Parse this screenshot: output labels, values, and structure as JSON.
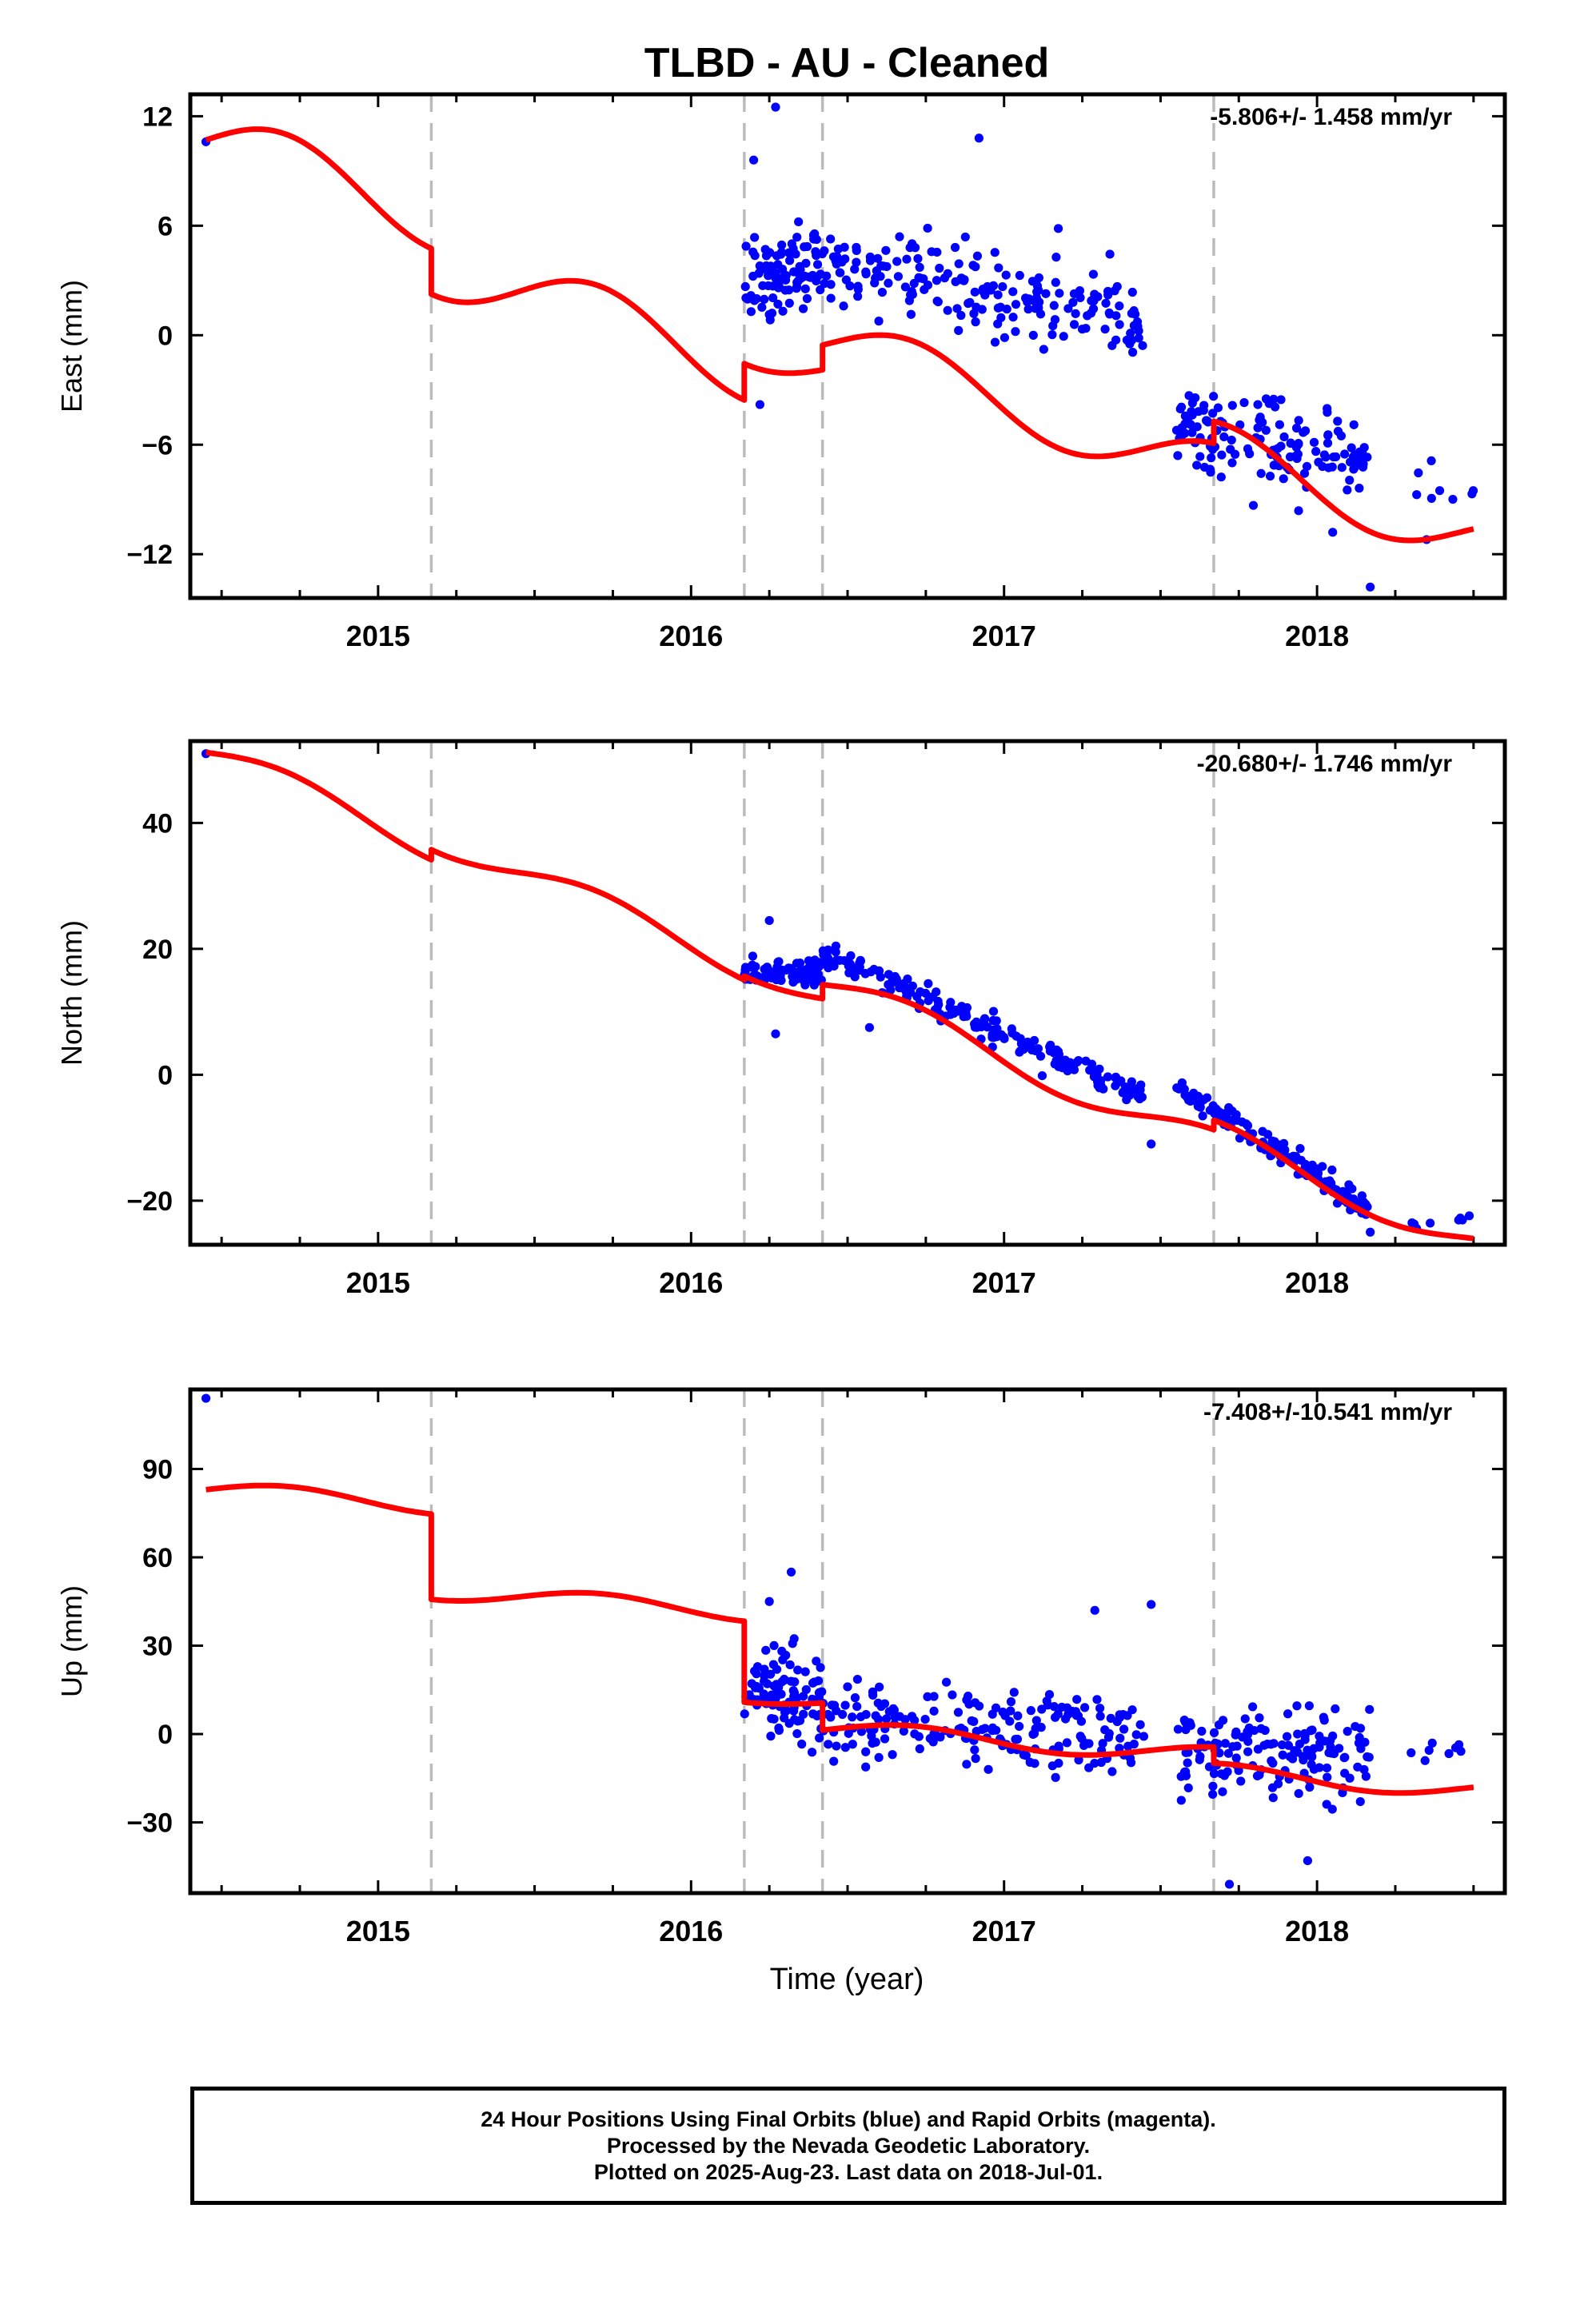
{
  "title": "TLBD  - AU - Cleaned",
  "xlabel": "Time (year)",
  "caption": {
    "line1": "24 Hour Positions Using Final Orbits (blue) and Rapid Orbits (magenta).",
    "line2": "Processed by the Nevada Geodetic Laboratory.",
    "line3": "Plotted on 2025-Aug-23. Last data on 2018-Jul-01."
  },
  "chart_data": [
    {
      "type": "scatter",
      "panel": "east",
      "ylabel": "East (mm)",
      "rate_label": "-5.806+/- 1.458 mm/yr",
      "xlim": [
        2014.4,
        2018.6
      ],
      "ylim": [
        -14.4,
        13.2
      ],
      "yticks": [
        12,
        6,
        0,
        -6,
        -12
      ],
      "ytick_labels": [
        "12",
        "6",
        "0",
        "−6",
        "−12"
      ],
      "xticks": [
        2015,
        2016,
        2017,
        2018
      ],
      "xtick_labels": [
        "2015",
        "2016",
        "2017",
        "2018"
      ],
      "breaks": [
        2015.17,
        2016.17,
        2016.42,
        2017.67
      ],
      "colors": {
        "points": "#0000ff",
        "model": "#ff0000",
        "breaks": "#bbbbbb"
      },
      "clusters": [
        {
          "x": [
            2014.45,
            2014.45
          ],
          "center": [
            10.6,
            10.6
          ],
          "spread": 0,
          "n": 1
        },
        {
          "x": [
            2016.17,
            2016.42
          ],
          "center": [
            3.4,
            3.6
          ],
          "spread": 2.4,
          "n": 95
        },
        {
          "x": [
            2016.42,
            2017.45
          ],
          "center": [
            4.0,
            0.8
          ],
          "spread": 2.0,
          "n": 190
        },
        {
          "x": [
            2017.55,
            2018.17
          ],
          "center": [
            -5.0,
            -6.5
          ],
          "spread": 2.0,
          "n": 150
        },
        {
          "x": [
            2018.3,
            2018.5
          ],
          "center": [
            -8.0,
            -8.5
          ],
          "spread": 1.6,
          "n": 8
        }
      ],
      "outliers": [
        [
          2016.27,
          12.5
        ],
        [
          2016.2,
          9.6
        ],
        [
          2016.92,
          10.8
        ],
        [
          2018.17,
          -13.8
        ],
        [
          2016.22,
          -3.8
        ],
        [
          2018.35,
          -11.2
        ],
        [
          2018.05,
          -10.8
        ]
      ],
      "model": {
        "segments": [
          {
            "x": [
              2014.45,
              2015.17
            ],
            "offset": 10.7,
            "slope": -5.806,
            "amp": 1.8,
            "phase": 0.0
          },
          {
            "x": [
              2015.17,
              2016.17
            ],
            "offset": 8.2,
            "slope": -5.806,
            "amp": 1.8,
            "phase": 0.0
          },
          {
            "x": [
              2016.17,
              2016.42
            ],
            "offset": 9.8,
            "slope": -5.806,
            "amp": 1.4,
            "phase": 0.0
          },
          {
            "x": [
              2016.42,
              2017.67
            ],
            "offset": 11.2,
            "slope": -5.806,
            "amp": 1.6,
            "phase": 0.0
          },
          {
            "x": [
              2017.67,
              2018.5
            ],
            "offset": 12.4,
            "slope": -5.806,
            "amp": 1.6,
            "phase": 0.0
          }
        ]
      }
    },
    {
      "type": "scatter",
      "panel": "north",
      "ylabel": "North (mm)",
      "rate_label": "-20.680+/- 1.746 mm/yr",
      "xlim": [
        2014.4,
        2018.6
      ],
      "ylim": [
        -27,
        53
      ],
      "yticks": [
        40,
        20,
        0,
        -20
      ],
      "ytick_labels": [
        "40",
        "20",
        "0",
        "−20"
      ],
      "xticks": [
        2015,
        2016,
        2017,
        2018
      ],
      "xtick_labels": [
        "2015",
        "2016",
        "2017",
        "2018"
      ],
      "breaks": [
        2015.17,
        2016.17,
        2016.42,
        2017.67
      ],
      "colors": {
        "points": "#0000ff",
        "model": "#ff0000",
        "breaks": "#bbbbbb"
      },
      "clusters": [
        {
          "x": [
            2014.45,
            2014.45
          ],
          "center": [
            51.0,
            51.0
          ],
          "spread": 0,
          "n": 1
        },
        {
          "x": [
            2016.17,
            2016.42
          ],
          "center": [
            15.8,
            16.5
          ],
          "spread": 1.8,
          "n": 95
        },
        {
          "x": [
            2016.42,
            2017.45
          ],
          "center": [
            19.5,
            -3.5
          ],
          "spread": 1.8,
          "n": 190
        },
        {
          "x": [
            2017.55,
            2018.17
          ],
          "center": [
            -2.0,
            -21.5
          ],
          "spread": 1.8,
          "n": 150
        },
        {
          "x": [
            2018.3,
            2018.5
          ],
          "center": [
            -24.0,
            -22.5
          ],
          "spread": 0.8,
          "n": 8
        }
      ],
      "outliers": [
        [
          2016.25,
          24.5
        ],
        [
          2016.27,
          6.5
        ],
        [
          2016.57,
          7.5
        ],
        [
          2017.47,
          -11.0
        ],
        [
          2018.17,
          -25.0
        ]
      ],
      "model": {
        "segments": [
          {
            "x": [
              2014.45,
              2015.17
            ],
            "offset": 51.2,
            "slope": -20.68,
            "amp": 2.2,
            "phase": 0.0
          },
          {
            "x": [
              2015.17,
              2016.17
            ],
            "offset": 52.8,
            "slope": -20.68,
            "amp": 2.2,
            "phase": 0.0
          },
          {
            "x": [
              2016.17,
              2016.42
            ],
            "offset": 53.2,
            "slope": -20.68,
            "amp": 2.0,
            "phase": 0.0
          },
          {
            "x": [
              2016.42,
              2017.67
            ],
            "offset": 55.5,
            "slope": -20.68,
            "amp": 2.4,
            "phase": 0.0
          },
          {
            "x": [
              2017.67,
              2018.5
            ],
            "offset": 57.0,
            "slope": -20.68,
            "amp": 2.4,
            "phase": 0.0
          }
        ]
      }
    },
    {
      "type": "scatter",
      "panel": "up",
      "ylabel": "Up (mm)",
      "rate_label": "-7.408+/-10.541 mm/yr",
      "xlim": [
        2014.4,
        2018.6
      ],
      "ylim": [
        -54,
        117
      ],
      "yticks": [
        90,
        60,
        30,
        0,
        -30
      ],
      "ytick_labels": [
        "90",
        "60",
        "30",
        "0",
        "−30"
      ],
      "xticks": [
        2015,
        2016,
        2017,
        2018
      ],
      "xtick_labels": [
        "2015",
        "2016",
        "2017",
        "2018"
      ],
      "breaks": [
        2015.17,
        2016.17,
        2016.42,
        2017.67
      ],
      "colors": {
        "points": "#0000ff",
        "model": "#ff0000",
        "breaks": "#bbbbbb"
      },
      "clusters": [
        {
          "x": [
            2014.45,
            2014.45
          ],
          "center": [
            114.0,
            114.0
          ],
          "spread": 0,
          "n": 1
        },
        {
          "x": [
            2016.17,
            2016.42
          ],
          "center": [
            14.0,
            14.0
          ],
          "spread": 14.0,
          "n": 95
        },
        {
          "x": [
            2016.42,
            2017.45
          ],
          "center": [
            4.0,
            -2.0
          ],
          "spread": 13.0,
          "n": 190
        },
        {
          "x": [
            2017.55,
            2018.17
          ],
          "center": [
            -6.0,
            -7.0
          ],
          "spread": 13.0,
          "n": 150
        },
        {
          "x": [
            2018.3,
            2018.5
          ],
          "center": [
            -6.0,
            -8.0
          ],
          "spread": 9.0,
          "n": 8
        }
      ],
      "outliers": [
        [
          2016.32,
          55.0
        ],
        [
          2016.25,
          45.0
        ],
        [
          2017.47,
          44.0
        ],
        [
          2017.72,
          -51.0
        ],
        [
          2017.97,
          -43.0
        ],
        [
          2017.29,
          42.0
        ]
      ],
      "model": {
        "segments": [
          {
            "x": [
              2014.45,
              2015.17
            ],
            "offset": 83.0,
            "slope": -7.408,
            "amp": 3.0,
            "phase": 0.0
          },
          {
            "x": [
              2015.17,
              2016.17
            ],
            "offset": 54.0,
            "slope": -7.408,
            "amp": 3.0,
            "phase": 0.0
          },
          {
            "x": [
              2016.17,
              2016.42
            ],
            "offset": 25.5,
            "slope": -7.408,
            "amp": 2.0,
            "phase": 0.0
          },
          {
            "x": [
              2016.42,
              2017.67
            ],
            "offset": 16.5,
            "slope": -7.408,
            "amp": 3.0,
            "phase": 0.0
          },
          {
            "x": [
              2017.67,
              2018.5
            ],
            "offset": 11.0,
            "slope": -7.408,
            "amp": 3.0,
            "phase": 0.0
          }
        ]
      }
    }
  ]
}
